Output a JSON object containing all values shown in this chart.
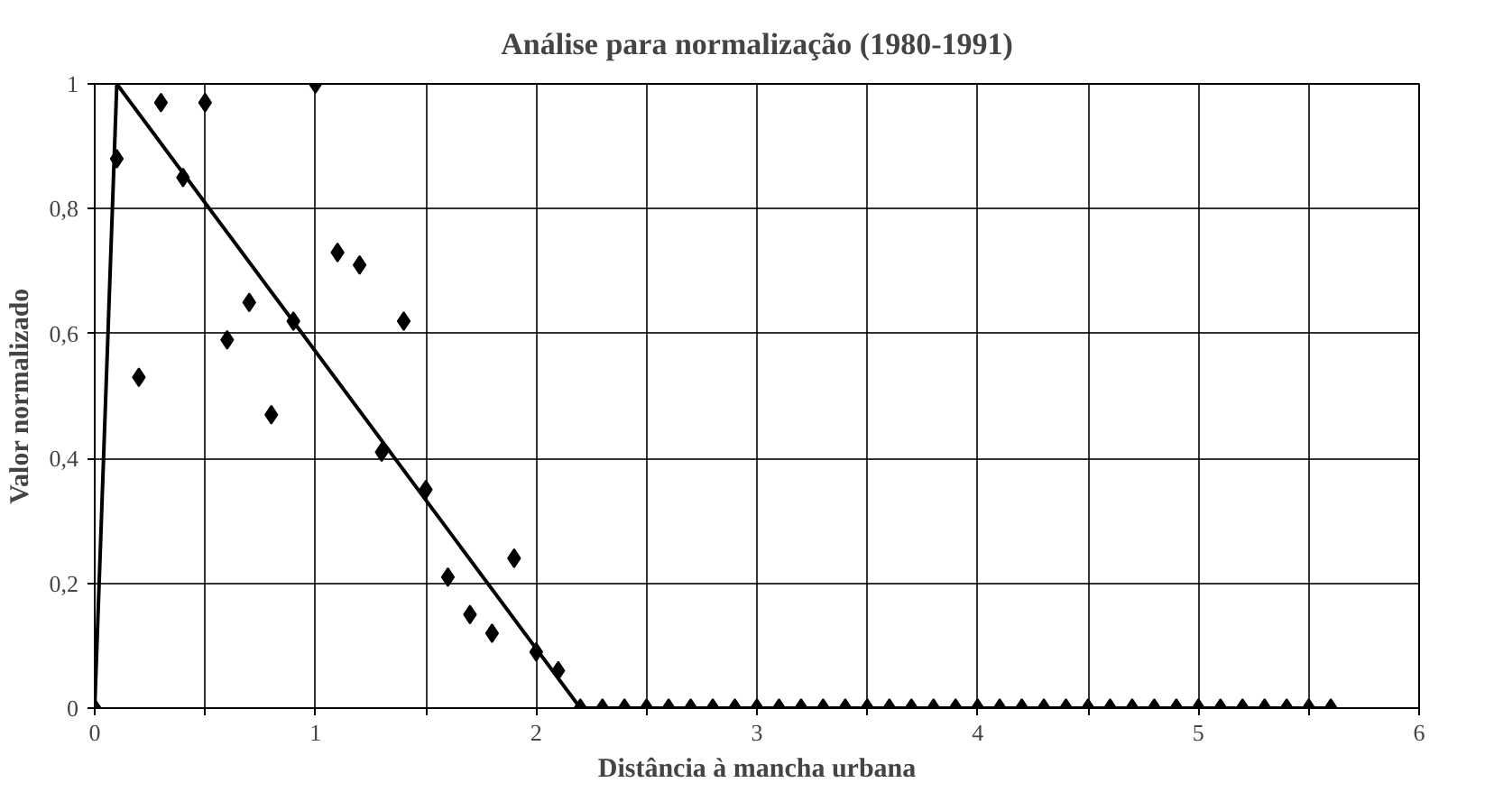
{
  "chart_data": {
    "type": "scatter",
    "title": "Análise para normalização (1980-1991)",
    "xlabel": "Distância à mancha urbana",
    "ylabel": "Valor normalizado",
    "xlim": [
      0,
      6
    ],
    "ylim": [
      0,
      1
    ],
    "xticks": [
      0,
      {
        "value": 0.5,
        "label": null
      },
      1,
      {
        "value": 1.5,
        "label": null
      },
      2,
      {
        "value": 2.5,
        "label": null
      },
      3,
      {
        "value": 3.5,
        "label": null
      },
      4,
      {
        "value": 4.5,
        "label": null
      },
      5,
      {
        "value": 5.5,
        "label": null
      },
      6
    ],
    "yticks": [
      0,
      {
        "value": 0.2,
        "label": "0,2"
      },
      {
        "value": 0.4,
        "label": "0,4"
      },
      {
        "value": 0.6,
        "label": "0,6"
      },
      {
        "value": 0.8,
        "label": "0,8"
      },
      1
    ],
    "grid": true,
    "series": [
      {
        "color": "#000000",
        "marker": "diamond",
        "x": [
          0,
          0.1,
          0.2,
          0.3,
          0.4,
          0.5,
          0.6,
          0.7,
          0.8,
          0.9,
          1.0,
          1.1,
          1.2,
          1.3,
          1.4,
          1.5,
          1.6,
          1.7,
          1.8,
          1.9,
          2.0,
          2.1,
          2.2,
          2.3,
          2.4,
          2.5,
          2.6,
          2.7,
          2.8,
          2.9,
          3.0,
          3.1,
          3.2,
          3.3,
          3.4,
          3.5,
          3.6,
          3.7,
          3.8,
          3.9,
          4.0,
          4.1,
          4.2,
          4.3,
          4.4,
          4.5,
          4.6,
          4.7,
          4.8,
          4.9,
          5.0,
          5.1,
          5.2,
          5.3,
          5.4,
          5.5,
          5.6
        ],
        "values": [
          0,
          0.88,
          0.53,
          0.97,
          0.85,
          0.97,
          0.59,
          0.65,
          0.47,
          0.62,
          1.0,
          0.73,
          0.71,
          0.41,
          0.62,
          0.35,
          0.21,
          0.15,
          0.12,
          0.24,
          0.09,
          0.06,
          0,
          0,
          0,
          0,
          0,
          0,
          0,
          0,
          0,
          0,
          0,
          0,
          0,
          0,
          0,
          0,
          0,
          0,
          0,
          0,
          0,
          0,
          0,
          0,
          0,
          0,
          0,
          0,
          0,
          0,
          0,
          0,
          0,
          0,
          0
        ]
      },
      {
        "type": "line",
        "color": "#000000",
        "marker": "none",
        "line_style": "solid",
        "x": [
          0,
          0.1,
          2.2,
          5.6
        ],
        "values": [
          0,
          1,
          0,
          0
        ]
      }
    ]
  }
}
